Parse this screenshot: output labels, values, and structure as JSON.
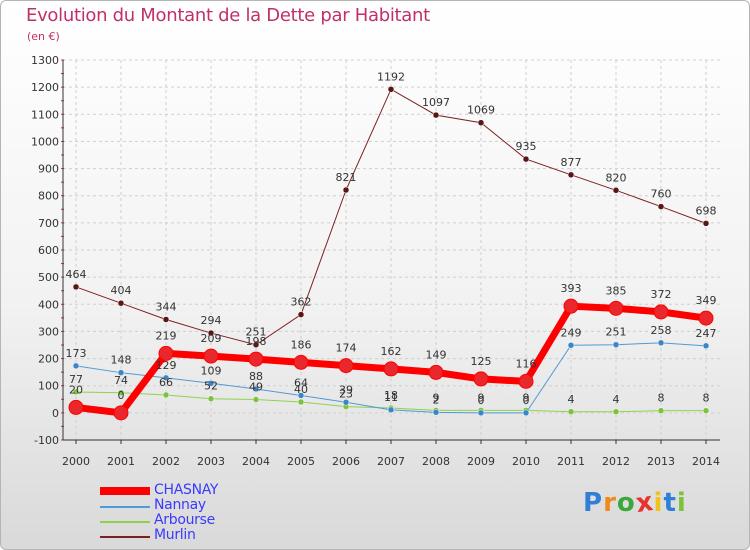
{
  "title": "Evolution du Montant de la Dette par Habitant",
  "subtitle": "(en €)",
  "colors": {
    "title": "#c0306a",
    "axis": "#333333",
    "grid": "#cfcfcf",
    "tick_mark": "#c0306a"
  },
  "chart_data": {
    "type": "line",
    "title": "Evolution du Montant de la Dette par Habitant",
    "subtitle": "(en €)",
    "xlabel": "",
    "ylabel": "",
    "categories": [
      "2000",
      "2001",
      "2002",
      "2003",
      "2004",
      "2005",
      "2006",
      "2007",
      "2008",
      "2009",
      "2010",
      "2011",
      "2012",
      "2013",
      "2014"
    ],
    "ylim": [
      -100,
      1300
    ],
    "yticks": [
      -100,
      0,
      100,
      200,
      300,
      400,
      500,
      600,
      700,
      800,
      900,
      1000,
      1100,
      1200,
      1300
    ],
    "grid": true,
    "legend_position": "bottom-left",
    "series": [
      {
        "name": "CHASNAY",
        "color": "#ff0000",
        "point_color": "#e8282d",
        "width": 7,
        "radius": 7,
        "values": [
          20,
          0,
          219,
          209,
          198,
          186,
          174,
          162,
          149,
          125,
          116,
          393,
          385,
          372,
          349
        ],
        "labels": [
          "20",
          "0",
          "219",
          "209",
          "198",
          "186",
          "174",
          "162",
          "149",
          "125",
          "116",
          "393",
          "385",
          "372",
          "349"
        ]
      },
      {
        "name": "Nannay",
        "color": "#4f9bd6",
        "point_color": "#3a86c6",
        "width": 1,
        "radius": 3,
        "values": [
          173,
          148,
          129,
          109,
          88,
          64,
          39,
          11,
          2,
          0,
          0,
          249,
          251,
          258,
          247
        ],
        "labels": [
          "173",
          "148",
          "129",
          "109",
          "88",
          "64",
          "39",
          "11",
          "2",
          "0",
          "0",
          "249",
          "251",
          "258",
          "247"
        ]
      },
      {
        "name": "Arbourse",
        "color": "#8fd14f",
        "point_color": "#7cc23a",
        "width": 1,
        "radius": 3,
        "values": [
          77,
          74,
          66,
          52,
          49,
          40,
          23,
          18,
          9,
          9,
          9,
          4,
          4,
          8,
          8
        ],
        "labels": [
          "77",
          "74",
          "66",
          "52",
          "49",
          "40",
          "23",
          "18",
          "9",
          "9",
          "9",
          "4",
          "4",
          "8",
          "8"
        ]
      },
      {
        "name": "Murlin",
        "color": "#7b2020",
        "point_color": "#5a1515",
        "width": 1,
        "radius": 3,
        "values": [
          464,
          404,
          344,
          294,
          251,
          362,
          821,
          1192,
          1097,
          1069,
          935,
          877,
          820,
          760,
          698
        ],
        "labels": [
          "464",
          "404",
          "344",
          "294",
          "251",
          "362",
          "821",
          "1192",
          "1097",
          "1069",
          "935",
          "877",
          "820",
          "760",
          "698"
        ]
      }
    ]
  },
  "legend": [
    {
      "label": "CHASNAY",
      "color": "#ff0000",
      "text_color": "#3a3aff",
      "thick": true
    },
    {
      "label": "Nannay",
      "color": "#4f9bd6",
      "text_color": "#3a3aff",
      "thick": false
    },
    {
      "label": "Arbourse",
      "color": "#8fd14f",
      "text_color": "#3a3aff",
      "thick": false
    },
    {
      "label": "Murlin",
      "color": "#7b2020",
      "text_color": "#3a3aff",
      "thick": false
    }
  ],
  "logo": {
    "text": "Proxiti",
    "letter_colors": [
      "#2f7fd6",
      "#f08a1c",
      "#3aa83a",
      "#e8322d",
      "#f0c21c",
      "#2f7fd6",
      "#7cc23a"
    ]
  }
}
